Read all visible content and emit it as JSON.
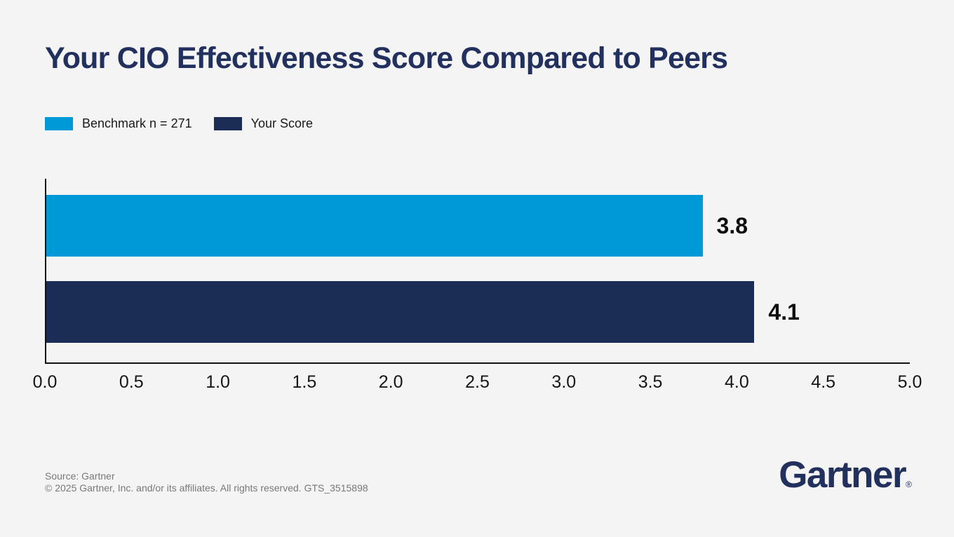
{
  "page": {
    "background": "#F4F4F5"
  },
  "header": {
    "title": "Your CIO Effectiveness Score Compared to Peers",
    "title_color": "#22305E"
  },
  "legend": {
    "items": [
      {
        "label": "Benchmark n = 271",
        "color": "#0099D8"
      },
      {
        "label": "Your Score",
        "color": "#1B2D55"
      }
    ]
  },
  "chart_data": {
    "type": "bar",
    "orientation": "horizontal",
    "title": "Your CIO Effectiveness Score Compared to Peers",
    "series": [
      {
        "name": "Benchmark n = 271",
        "value": 3.8,
        "label": "3.8",
        "color": "#0099D8"
      },
      {
        "name": "Your Score",
        "value": 4.1,
        "label": "4.1",
        "color": "#1B2D55"
      }
    ],
    "xlim": [
      0,
      5
    ],
    "x_ticks": [
      "0.0",
      "0.5",
      "1.0",
      "1.5",
      "2.0",
      "2.5",
      "3.0",
      "3.5",
      "4.0",
      "4.5",
      "5.0"
    ],
    "xlabel": "",
    "ylabel": "",
    "grid": false,
    "legend_position": "top-left",
    "axis_color": "#111111",
    "value_label_color": "#0D0D0D"
  },
  "footer": {
    "source": "Source: Gartner",
    "copyright": "© 2025 Gartner, Inc. and/or its affiliates. All rights reserved. GTS_3515898",
    "logo": {
      "text": "Gartner",
      "registered_mark": "®",
      "color": "#22305E"
    }
  }
}
